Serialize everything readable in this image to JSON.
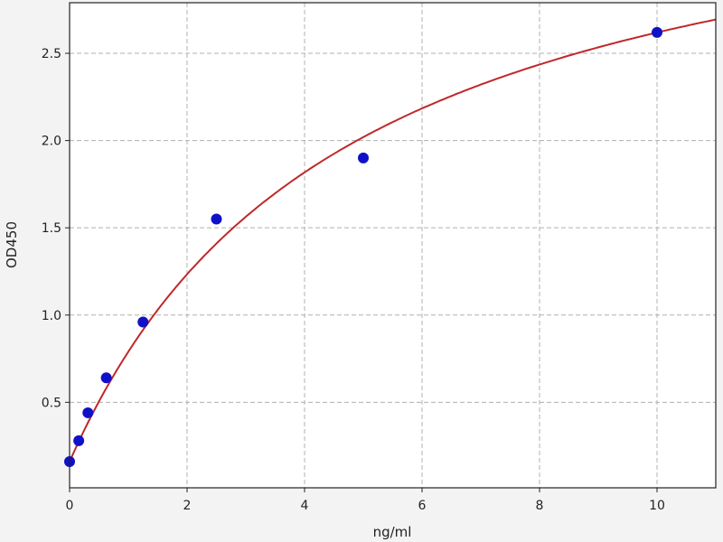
{
  "chart_data": {
    "type": "scatter",
    "xlabel": "ng/ml",
    "ylabel": "OD450",
    "xlim": [
      0,
      11
    ],
    "ylim": [
      0.01,
      2.79
    ],
    "xticks": [
      "0",
      "2",
      "4",
      "6",
      "8",
      "10"
    ],
    "yticks": [
      "0.5",
      "1.0",
      "1.5",
      "2.0",
      "2.5"
    ],
    "grid": true,
    "points": {
      "x": [
        0,
        0.156,
        0.312,
        0.625,
        1.25,
        2.5,
        5,
        10
      ],
      "y": [
        0.16,
        0.28,
        0.44,
        0.64,
        0.96,
        1.55,
        1.9,
        2.62
      ]
    },
    "fit_curve": true,
    "colors": {
      "points": "#1010c8",
      "curve": "#c0282a",
      "grid": "#b0b0b0"
    }
  }
}
